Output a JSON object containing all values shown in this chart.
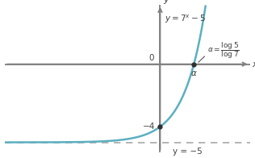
{
  "curve_color": "#5bafc1",
  "axis_color": "#808080",
  "dashed_color": "#a8a8a8",
  "dot_color": "#303030",
  "text_color": "#404040",
  "xlim": [
    -3.8,
    2.2
  ],
  "ylim": [
    -5.8,
    3.8
  ],
  "asymptote_y": -5,
  "x_intercept_value": 0.827,
  "y_intercept_value": -4,
  "xlabel": "x",
  "ylabel": "y",
  "origin_label": "0",
  "neg4_label": "−4",
  "neg5_label": "y = −5",
  "alpha_label": "α"
}
